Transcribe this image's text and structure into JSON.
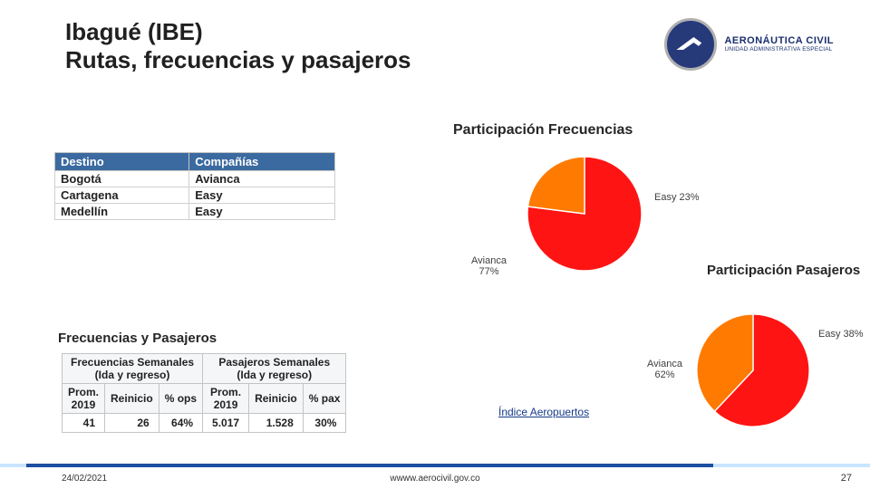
{
  "title_line1": "Ibagué (IBE)",
  "title_line2": "Rutas, frecuencias y pasajeros",
  "logo": {
    "name": "AERONÁUTICA CIVIL",
    "sub": "UNIDAD ADMINISTRATIVA ESPECIAL"
  },
  "sec_freq_part": "Participación Frecuencias",
  "sec_pax_part": "Participación Pasajeros",
  "sec_freq_pax": "Frecuencias y Pasajeros",
  "dest_table": {
    "headers": [
      "Destino",
      "Compañías"
    ],
    "rows": [
      [
        "Bogotá",
        "Avianca"
      ],
      [
        "Cartagena",
        "Easy"
      ],
      [
        "Medellín",
        "Easy"
      ]
    ]
  },
  "pie1": {
    "type": "pie",
    "slices": [
      {
        "label": "Avianca",
        "pct": 77,
        "color": "#ff1414",
        "text": "Avianca\n77%"
      },
      {
        "label": "Easy",
        "pct": 23,
        "color": "#ff7a00",
        "text": "Easy 23%"
      }
    ],
    "bg": "#ffffff",
    "label_fontsize": 11
  },
  "pie2": {
    "type": "pie",
    "slices": [
      {
        "label": "Avianca",
        "pct": 62,
        "color": "#ff1414",
        "text": "Avianca\n62%"
      },
      {
        "label": "Easy",
        "pct": 38,
        "color": "#ff7a00",
        "text": "Easy 38%"
      }
    ],
    "bg": "#ffffff",
    "label_fontsize": 11
  },
  "freq_table": {
    "group_headers": [
      "Frecuencias Semanales\n(Ida y regreso)",
      "Pasajeros Semanales\n(Ida y regreso)"
    ],
    "sub_headers": [
      "Prom.\n2019",
      "Reinicio",
      "% ops",
      "Prom.\n2019",
      "Reinicio",
      "% pax"
    ],
    "row": [
      "41",
      "26",
      "64%",
      "5.017",
      "1.528",
      "30%"
    ]
  },
  "link_indice": "Índice Aeropuertos",
  "footer": {
    "date": "24/02/2021",
    "url": "wwww.aerocivil.gov.co",
    "page": "27"
  }
}
